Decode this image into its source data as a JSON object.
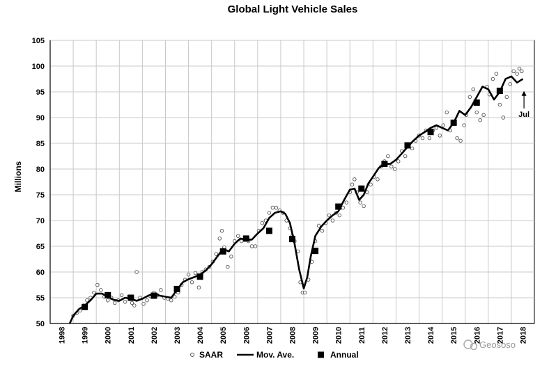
{
  "chart_data": {
    "type": "line",
    "title": "Global Light Vehicle Sales",
    "xlabel": "",
    "ylabel": "Millions",
    "xlim": [
      1998,
      2019
    ],
    "ylim": [
      50,
      105
    ],
    "x_ticks": [
      "1998",
      "1999",
      "2000",
      "2001",
      "2002",
      "2003",
      "2004",
      "2005",
      "2006",
      "2007",
      "2008",
      "2009",
      "2010",
      "2011",
      "2012",
      "2013",
      "2014",
      "2015",
      "2016",
      "2017",
      "2018"
    ],
    "y_ticks": [
      50,
      55,
      60,
      65,
      70,
      75,
      80,
      85,
      90,
      95,
      100,
      105
    ],
    "grid": true,
    "legend": {
      "position": "bottom-center",
      "entries": [
        "SAAR",
        "Mov. Ave.",
        "Annual"
      ]
    },
    "annotation": {
      "text": "Jul",
      "x": 2018.55,
      "y": 95.3
    },
    "series": [
      {
        "name": "Mov. Ave.",
        "style": "line",
        "x": [
          1998.85,
          1999.0,
          1999.25,
          1999.5,
          1999.75,
          2000.0,
          2000.25,
          2000.5,
          2000.75,
          2001.0,
          2001.25,
          2001.5,
          2001.75,
          2002.0,
          2002.25,
          2002.5,
          2002.75,
          2003.0,
          2003.25,
          2003.5,
          2003.75,
          2004.0,
          2004.25,
          2004.5,
          2004.75,
          2005.0,
          2005.25,
          2005.5,
          2005.75,
          2006.0,
          2006.25,
          2006.5,
          2006.75,
          2007.0,
          2007.25,
          2007.5,
          2007.75,
          2008.0,
          2008.2,
          2008.4,
          2008.6,
          2008.8,
          2009.0,
          2009.15,
          2009.3,
          2009.5,
          2009.75,
          2010.0,
          2010.25,
          2010.5,
          2010.75,
          2011.0,
          2011.2,
          2011.4,
          2011.6,
          2011.8,
          2012.0,
          2012.25,
          2012.5,
          2012.75,
          2013.0,
          2013.25,
          2013.5,
          2013.75,
          2014.0,
          2014.25,
          2014.5,
          2014.75,
          2015.0,
          2015.25,
          2015.5,
          2015.75,
          2016.0,
          2016.25,
          2016.5,
          2016.75,
          2017.0,
          2017.25,
          2017.5,
          2017.75,
          2018.0,
          2018.25,
          2018.5
        ],
        "values": [
          50.0,
          51.5,
          52.8,
          53.5,
          54.5,
          55.8,
          55.8,
          55.2,
          54.6,
          54.4,
          55.0,
          54.8,
          54.4,
          54.8,
          55.4,
          55.8,
          55.4,
          55.2,
          55.0,
          56.5,
          58.0,
          58.6,
          59.0,
          59.5,
          60.3,
          61.5,
          63.0,
          64.5,
          64.0,
          65.5,
          66.5,
          66.3,
          66.3,
          67.5,
          68.5,
          70.5,
          71.5,
          71.8,
          71.3,
          69.5,
          65.5,
          60.5,
          56.8,
          59.0,
          63.0,
          67.0,
          68.8,
          70.0,
          71.0,
          71.8,
          74.0,
          76.0,
          76.2,
          74.0,
          75.0,
          77.2,
          78.5,
          80.2,
          81.0,
          81.0,
          81.8,
          83.0,
          84.3,
          85.5,
          86.5,
          87.2,
          88.0,
          88.5,
          88.0,
          87.5,
          89.0,
          91.3,
          90.5,
          92.0,
          94.0,
          96.0,
          95.5,
          93.5,
          95.0,
          97.5,
          98.0,
          96.8,
          97.5
        ]
      },
      {
        "name": "Annual",
        "style": "square",
        "x": [
          1999.5,
          2000.5,
          2001.5,
          2002.5,
          2003.5,
          2004.5,
          2005.5,
          2006.5,
          2007.5,
          2008.5,
          2009.5,
          2010.5,
          2011.5,
          2012.5,
          2013.5,
          2014.5,
          2015.5,
          2016.5,
          2017.5
        ],
        "values": [
          53.2,
          55.5,
          55.0,
          55.4,
          56.7,
          59.1,
          64.0,
          66.5,
          68.0,
          66.4,
          64.1,
          72.7,
          76.2,
          81.0,
          84.6,
          87.2,
          89.0,
          92.9,
          95.2
        ]
      },
      {
        "name": "SAAR",
        "style": "circle",
        "x": [
          1999.0,
          1999.15,
          1999.3,
          1999.45,
          1999.6,
          1999.75,
          1999.9,
          2000.05,
          2000.2,
          2000.35,
          2000.5,
          2000.65,
          2000.8,
          2000.95,
          2001.1,
          2001.25,
          2001.4,
          2001.55,
          2001.65,
          2001.75,
          2001.9,
          2002.05,
          2002.2,
          2002.35,
          2002.5,
          2002.65,
          2002.8,
          2002.95,
          2003.1,
          2003.25,
          2003.4,
          2003.55,
          2003.7,
          2003.85,
          2004.0,
          2004.15,
          2004.3,
          2004.45,
          2004.6,
          2004.75,
          2004.9,
          2005.05,
          2005.2,
          2005.35,
          2005.45,
          2005.55,
          2005.7,
          2005.85,
          2006.0,
          2006.15,
          2006.3,
          2006.45,
          2006.6,
          2006.75,
          2006.9,
          2007.05,
          2007.2,
          2007.35,
          2007.5,
          2007.65,
          2007.8,
          2007.95,
          2008.1,
          2008.25,
          2008.4,
          2008.5,
          2008.6,
          2008.75,
          2008.85,
          2008.95,
          2009.05,
          2009.2,
          2009.35,
          2009.5,
          2009.65,
          2009.8,
          2009.95,
          2010.1,
          2010.25,
          2010.4,
          2010.55,
          2010.7,
          2010.85,
          2011.0,
          2011.1,
          2011.2,
          2011.3,
          2011.45,
          2011.6,
          2011.75,
          2011.9,
          2012.05,
          2012.2,
          2012.35,
          2012.5,
          2012.65,
          2012.8,
          2012.95,
          2013.1,
          2013.25,
          2013.4,
          2013.55,
          2013.7,
          2013.85,
          2014.0,
          2014.15,
          2014.3,
          2014.45,
          2014.6,
          2014.75,
          2014.9,
          2015.05,
          2015.2,
          2015.35,
          2015.5,
          2015.65,
          2015.8,
          2015.95,
          2016.05,
          2016.2,
          2016.35,
          2016.5,
          2016.65,
          2016.8,
          2016.95,
          2017.05,
          2017.2,
          2017.35,
          2017.5,
          2017.65,
          2017.8,
          2017.95,
          2018.1,
          2018.25,
          2018.35,
          2018.45
        ],
        "values": [
          51.5,
          52.0,
          52.5,
          53.5,
          54.5,
          55.0,
          56.0,
          57.5,
          56.5,
          55.2,
          54.5,
          55.0,
          54.0,
          54.5,
          55.5,
          54.2,
          55.2,
          54.0,
          53.5,
          60.0,
          55.0,
          53.8,
          54.5,
          55.3,
          56.0,
          55.5,
          56.5,
          55.0,
          54.8,
          54.5,
          55.2,
          56.0,
          57.5,
          58.5,
          59.5,
          58.0,
          59.8,
          57.0,
          60.0,
          60.5,
          61.0,
          62.0,
          63.5,
          66.5,
          68.0,
          64.8,
          61.0,
          63.0,
          66.0,
          67.0,
          66.0,
          66.5,
          66.0,
          65.0,
          65.0,
          68.0,
          69.5,
          70.0,
          71.5,
          72.5,
          72.5,
          72.0,
          71.5,
          70.0,
          68.5,
          67.0,
          66.0,
          64.0,
          58.0,
          56.0,
          56.0,
          58.5,
          62.0,
          66.0,
          69.0,
          68.0,
          69.5,
          71.0,
          70.0,
          71.5,
          71.0,
          72.5,
          73.5,
          75.5,
          77.0,
          78.0,
          75.5,
          73.5,
          72.8,
          75.5,
          77.0,
          78.5,
          78.0,
          80.5,
          81.5,
          82.5,
          80.5,
          80.0,
          81.5,
          83.5,
          82.5,
          84.5,
          84.0,
          85.5,
          86.5,
          86.0,
          87.5,
          86.0,
          87.5,
          88.0,
          86.5,
          88.5,
          91.0,
          87.5,
          89.0,
          86.0,
          85.5,
          88.5,
          90.5,
          94.0,
          95.5,
          91.0,
          89.5,
          90.5,
          96.0,
          94.5,
          97.5,
          98.5,
          92.5,
          90.0,
          94.0,
          96.5,
          99.0,
          98.5,
          99.5,
          99.0
        ]
      }
    ]
  },
  "watermark": "Geososo"
}
